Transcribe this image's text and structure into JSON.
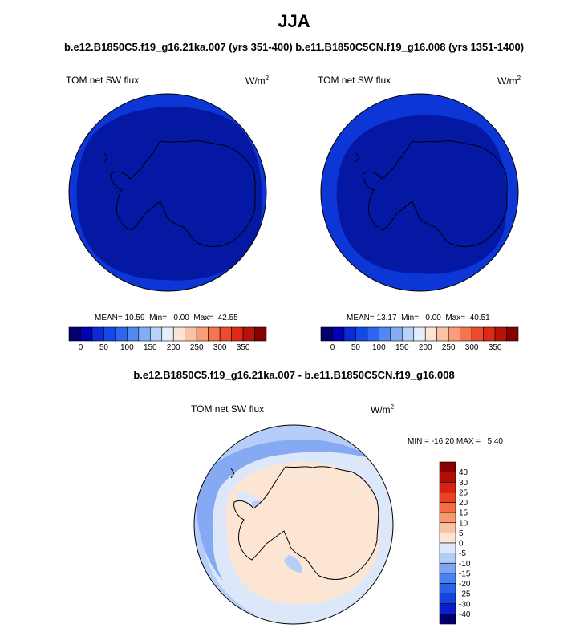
{
  "title": "JJA",
  "subtitle": "b.e12.B1850C5.f19_g16.21ka.007 (yrs 351-400) b.e11.B1850C5CN.f19_g16.008 (yrs 1351-1400)",
  "diff_title": "b.e12.B1850C5.f19_g16.21ka.007 - b.e11.B1850C5CN.f19_g16.008",
  "panels": [
    {
      "label": "TOM net SW flux",
      "units_base": "W/m",
      "units_exp": "2",
      "stats": "MEAN= 10.59  Min=   0.00  Max=  42.55"
    },
    {
      "label": "TOM net SW flux",
      "units_base": "W/m",
      "units_exp": "2",
      "stats": "MEAN= 13.17  Min=   0.00  Max=  40.51"
    },
    {
      "label": "TOM net SW flux",
      "units_base": "W/m",
      "units_exp": "2",
      "stats": "MIN = -16.20 MAX =   5.40"
    }
  ],
  "colorbar_top": {
    "colors": [
      "#03006b",
      "#0000b4",
      "#0a2ad5",
      "#1449e8",
      "#2e66ef",
      "#5388f2",
      "#83aef6",
      "#b8d2f9",
      "#e4eefc",
      "#fce3d2",
      "#fbc3a6",
      "#fa9e79",
      "#f67550",
      "#ee4a2c",
      "#dd2a17",
      "#b8130b",
      "#870000"
    ],
    "labels": [
      "0",
      "50",
      "100",
      "150",
      "200",
      "250",
      "300",
      "350"
    ]
  },
  "colorbar_diff": {
    "colors": [
      "#03006b",
      "#0a1fc9",
      "#1443e2",
      "#2a62ee",
      "#4c80f1",
      "#7ea4f4",
      "#b1ccf8",
      "#dde9fb",
      "#fbe6d6",
      "#fbc2a2",
      "#f99870",
      "#f56c45",
      "#ea4222",
      "#d3240f",
      "#b20e06",
      "#870000"
    ],
    "labels": [
      "40",
      "30",
      "25",
      "20",
      "15",
      "10",
      "5",
      "0",
      "-5",
      "-10",
      "-15",
      "-20",
      "-25",
      "-30",
      "-40"
    ]
  },
  "colors": {
    "ocean_dark": "#0418a4",
    "ocean_ring": "#0d36d6",
    "diff_pos": "#fde5d3",
    "diff_neg1": "#dce8fa",
    "diff_neg2": "#b5cdf8",
    "diff_neg3": "#86a9f4"
  }
}
